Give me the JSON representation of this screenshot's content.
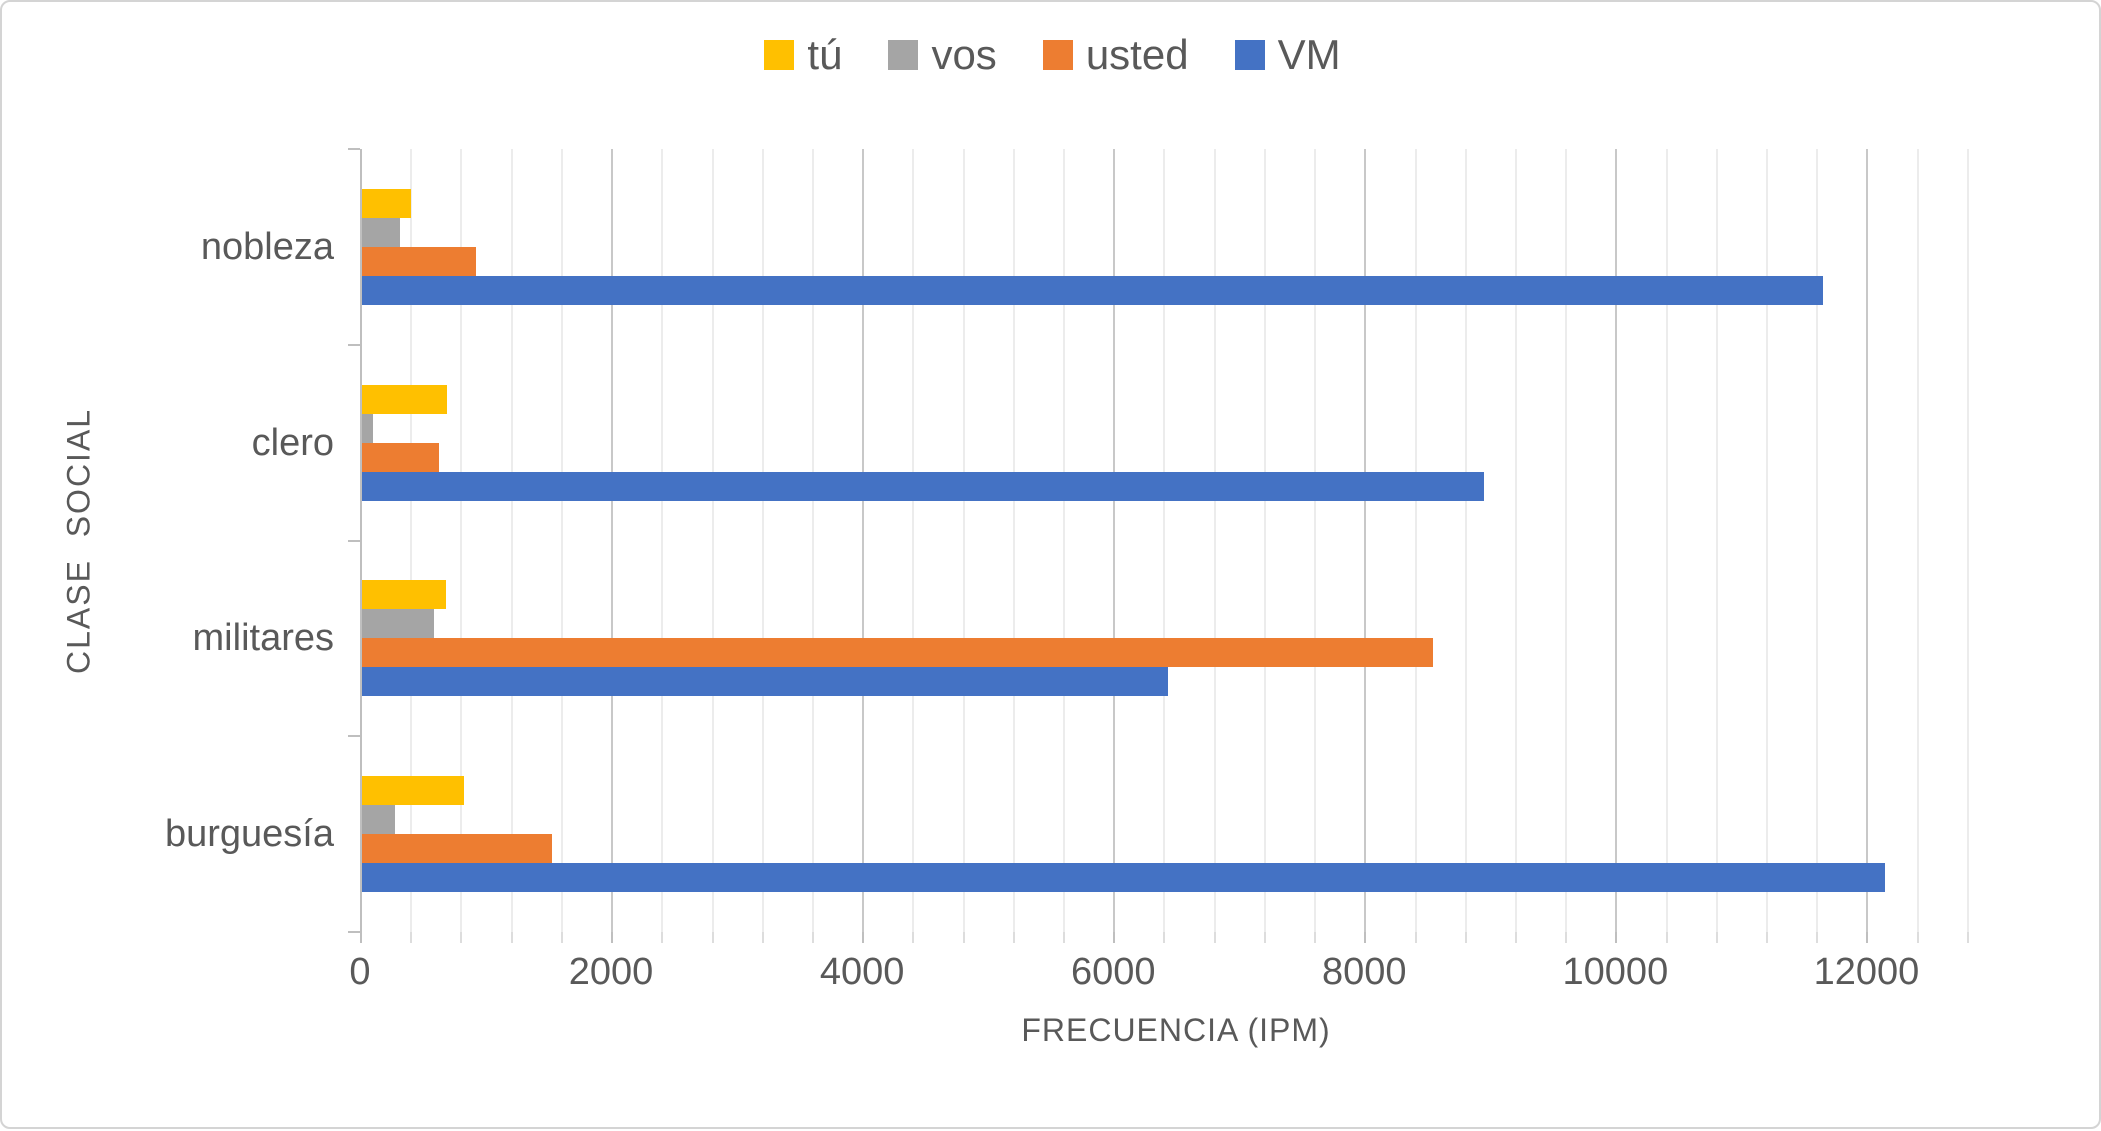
{
  "chart_data": {
    "type": "bar",
    "orientation": "horizontal",
    "title": "",
    "xlabel": "FRECUENCIA (IPM)",
    "ylabel": "CLASE  SOCIAL",
    "categories": [
      "nobleza",
      "clero",
      "militares",
      "burguesía"
    ],
    "series": [
      {
        "name": "tú",
        "color": "#FFC000",
        "values": [
          390,
          680,
          670,
          810
        ]
      },
      {
        "name": "vos",
        "color": "#A5A5A5",
        "values": [
          300,
          90,
          570,
          260
        ]
      },
      {
        "name": "usted",
        "color": "#ED7D31",
        "values": [
          910,
          610,
          8530,
          1510
        ]
      },
      {
        "name": "VM",
        "color": "#4472C4",
        "values": [
          11640,
          8940,
          6420,
          12130
        ]
      }
    ],
    "x_axis": {
      "min": 0,
      "max": 13000,
      "major_unit": 2000,
      "minor_unit": 400,
      "tick_labels": [
        "0",
        "2000",
        "4000",
        "6000",
        "8000",
        "10000",
        "12000"
      ]
    },
    "legend_position": "top",
    "grid": true
  },
  "colors": {
    "text": "#595959",
    "grid_minor": "#ECECEC",
    "grid_major": "#C8C8C8",
    "axis": "#BFBFBF",
    "frame_border": "#D4D4D4",
    "background": "#FFFFFF"
  }
}
